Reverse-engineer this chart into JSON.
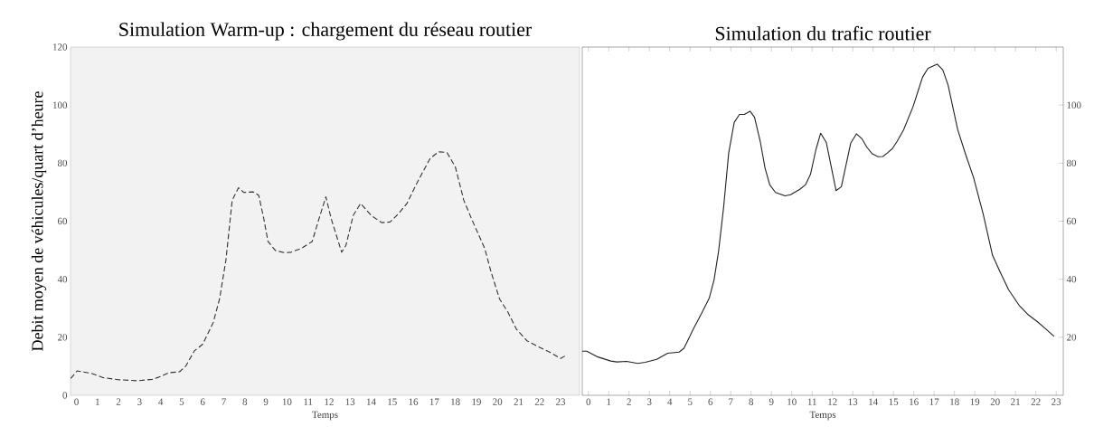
{
  "chart_data": [
    {
      "type": "line",
      "title": "Simulation Warm-up : chargement du réseau routier",
      "xlabel": "Temps",
      "ylabel": "Debit moyen de véhicules/quart d’heure",
      "line_style": "dashed",
      "x": [
        -0.27,
        0.03,
        0.7,
        1.26,
        1.97,
        2.9,
        3.6,
        3.9,
        4.4,
        4.9,
        5.2,
        5.6,
        6.0,
        6.5,
        6.8,
        7.1,
        7.4,
        7.7,
        7.95,
        8.4,
        8.66,
        8.9,
        9.1,
        9.45,
        9.9,
        10.2,
        10.7,
        11.2,
        11.5,
        11.85,
        12.1,
        12.6,
        12.8,
        13.15,
        13.5,
        14.0,
        14.5,
        14.9,
        15.3,
        15.7,
        16.2,
        16.8,
        17.2,
        17.6,
        18.0,
        18.4,
        18.8,
        19.4,
        19.7,
        20.1,
        20.5,
        20.9,
        21.4,
        22.0,
        22.5,
        23.0,
        23.3
      ],
      "values": [
        5.8,
        8.4,
        7.6,
        6.1,
        5.4,
        5.0,
        5.5,
        6.2,
        7.8,
        8.1,
        10.1,
        15.3,
        17.6,
        25.1,
        33.2,
        46.5,
        67.2,
        71.5,
        69.9,
        70.1,
        68.9,
        60.9,
        53.0,
        49.9,
        49.1,
        49.3,
        50.7,
        53.0,
        60.3,
        68.4,
        60.9,
        49.3,
        51.6,
        62.0,
        66.1,
        62.0,
        59.5,
        59.7,
        62.6,
        66.1,
        73.5,
        81.6,
        83.9,
        83.7,
        78.7,
        67.2,
        60.3,
        50.5,
        42.4,
        33.2,
        28.6,
        22.8,
        18.8,
        16.5,
        14.8,
        12.7,
        13.9
      ],
      "color": "#333333",
      "xlim": [
        -0.28,
        23.9
      ],
      "ylim": [
        0,
        120
      ],
      "xticks": [
        0,
        1,
        2,
        3,
        4,
        5,
        6,
        7,
        8,
        9,
        10,
        11,
        12,
        13,
        14,
        15,
        16,
        17,
        18,
        19,
        20,
        21,
        22,
        23
      ],
      "yticks": [
        0,
        20,
        40,
        60,
        80,
        100,
        120
      ]
    },
    {
      "type": "line",
      "title": "Simulation du trafic routier",
      "xlabel": "Temps",
      "line_style": "solid",
      "x": [
        -0.3,
        -0.08,
        0.47,
        1.1,
        1.4,
        1.88,
        2.43,
        2.8,
        3.36,
        3.9,
        4.46,
        4.7,
        5.16,
        5.6,
        5.95,
        6.18,
        6.4,
        6.65,
        6.9,
        7.17,
        7.43,
        7.67,
        7.95,
        8.17,
        8.45,
        8.69,
        8.92,
        9.2,
        9.67,
        9.94,
        10.4,
        10.67,
        10.92,
        11.19,
        11.42,
        11.7,
        12.18,
        12.44,
        12.9,
        13.18,
        13.46,
        13.7,
        13.96,
        14.24,
        14.48,
        14.7,
        14.95,
        15.18,
        15.5,
        15.96,
        16.43,
        16.7,
        17.15,
        17.43,
        17.69,
        18.16,
        18.55,
        18.94,
        19.41,
        19.87,
        20.2,
        20.66,
        21.2,
        21.6,
        22.07,
        22.5,
        22.9
      ],
      "values": [
        15.2,
        15.2,
        13.2,
        11.8,
        11.5,
        11.7,
        11.0,
        11.4,
        12.4,
        14.5,
        14.9,
        16.2,
        22.8,
        28.7,
        33.6,
        39.8,
        49.5,
        64.8,
        83.5,
        94.0,
        96.8,
        96.8,
        97.9,
        95.8,
        87.5,
        78.2,
        72.5,
        69.9,
        68.7,
        69.1,
        71.0,
        72.5,
        76.1,
        84.7,
        90.3,
        87.1,
        70.5,
        71.9,
        86.9,
        90.1,
        88.3,
        85.4,
        83.2,
        82.2,
        82.3,
        83.5,
        85.0,
        87.5,
        91.5,
        99.4,
        109.6,
        112.7,
        114.1,
        112.1,
        106.8,
        91.5,
        83.0,
        75.0,
        62.5,
        48.3,
        43.2,
        36.4,
        30.8,
        27.9,
        25.4,
        22.8,
        20.3
      ],
      "color": "#222222",
      "xlim": [
        -0.3,
        23.35
      ],
      "ylim": [
        0,
        120
      ],
      "xticks": [
        0,
        1,
        2,
        3,
        4,
        5,
        6,
        7,
        8,
        9,
        10,
        11,
        12,
        13,
        14,
        15,
        16,
        17,
        18,
        19,
        20,
        21,
        22,
        23
      ],
      "yticks": [
        20,
        40,
        60,
        80,
        100
      ]
    }
  ]
}
